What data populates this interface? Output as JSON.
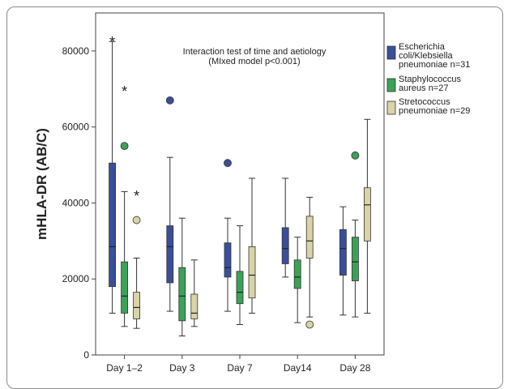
{
  "chart_data": {
    "type": "boxplot",
    "title": "Interaction test of time and aetiology",
    "subtitle": "(MIxed model p<0.001)",
    "xlabel": "",
    "ylabel": "mHLA-DR (AB/C)",
    "ylim": [
      0,
      90000
    ],
    "yticks": [
      0,
      20000,
      40000,
      60000,
      80000
    ],
    "categories": [
      "Day 1–2",
      "Day 3",
      "Day 7",
      "Day14",
      "Day 28"
    ],
    "grid": false,
    "legend_position": "right",
    "series": [
      {
        "name": "Escherichia coli/Klebsiella pneumoniae n=31",
        "color": "#3a4f9c",
        "boxes": [
          {
            "min": 11000,
            "q1": 18000,
            "median": 28500,
            "q3": 50500,
            "max": 82500,
            "outliers": [],
            "extremes": [
              82500
            ]
          },
          {
            "min": 11500,
            "q1": 19000,
            "median": 28500,
            "q3": 34000,
            "max": 52000,
            "outliers": [
              67000
            ],
            "extremes": []
          },
          {
            "min": 11500,
            "q1": 20500,
            "median": 23000,
            "q3": 29500,
            "max": 36000,
            "outliers": [
              50500
            ],
            "extremes": []
          },
          {
            "min": 20500,
            "q1": 24000,
            "median": 28000,
            "q3": 33500,
            "max": 46500,
            "outliers": [],
            "extremes": []
          },
          {
            "min": 10500,
            "q1": 21000,
            "median": 28000,
            "q3": 33000,
            "max": 39000,
            "outliers": [],
            "extremes": []
          }
        ]
      },
      {
        "name": "Staphylococcus aureus n=27",
        "color": "#3aa356",
        "boxes": [
          {
            "min": 7500,
            "q1": 11000,
            "median": 15500,
            "q3": 24500,
            "max": 43000,
            "outliers": [
              55000
            ],
            "extremes": [
              69500
            ]
          },
          {
            "min": 5000,
            "q1": 9000,
            "median": 15500,
            "q3": 23000,
            "max": 36000,
            "outliers": [],
            "extremes": []
          },
          {
            "min": 8000,
            "q1": 13500,
            "median": 16500,
            "q3": 22000,
            "max": 34000,
            "outliers": [],
            "extremes": []
          },
          {
            "min": 8500,
            "q1": 17500,
            "median": 20500,
            "q3": 25000,
            "max": 31000,
            "outliers": [],
            "extremes": []
          },
          {
            "min": 10000,
            "q1": 19500,
            "median": 24500,
            "q3": 31000,
            "max": 35500,
            "outliers": [
              52500
            ],
            "extremes": []
          }
        ]
      },
      {
        "name": "Stretococcus pneumoniae n=29",
        "color": "#d9d3a5",
        "boxes": [
          {
            "min": 7000,
            "q1": 9500,
            "median": 12500,
            "q3": 16500,
            "max": 25500,
            "outliers": [
              35500
            ],
            "extremes": [
              42000
            ]
          },
          {
            "min": 7500,
            "q1": 9500,
            "median": 11000,
            "q3": 16000,
            "max": 25000,
            "outliers": [],
            "extremes": []
          },
          {
            "min": 11000,
            "q1": 15000,
            "median": 21000,
            "q3": 28500,
            "max": 46500,
            "outliers": [],
            "extremes": []
          },
          {
            "min": 10000,
            "q1": 25500,
            "median": 30000,
            "q3": 36500,
            "max": 41500,
            "outliers": [
              8000
            ],
            "extremes": []
          },
          {
            "min": 11000,
            "q1": 30000,
            "median": 39500,
            "q3": 44000,
            "max": 62000,
            "outliers": [],
            "extremes": []
          }
        ]
      }
    ],
    "legend": [
      {
        "lines": [
          "Escherichia",
          "coli/Klebsiella",
          "pneumoniae n=31"
        ],
        "color": "#3a4f9c"
      },
      {
        "lines": [
          "Staphylococcus",
          "aureus n=27"
        ],
        "color": "#3aa356"
      },
      {
        "lines": [
          "Stretococcus",
          "pneumoniae n=29"
        ],
        "color": "#d9d3a5"
      }
    ]
  }
}
